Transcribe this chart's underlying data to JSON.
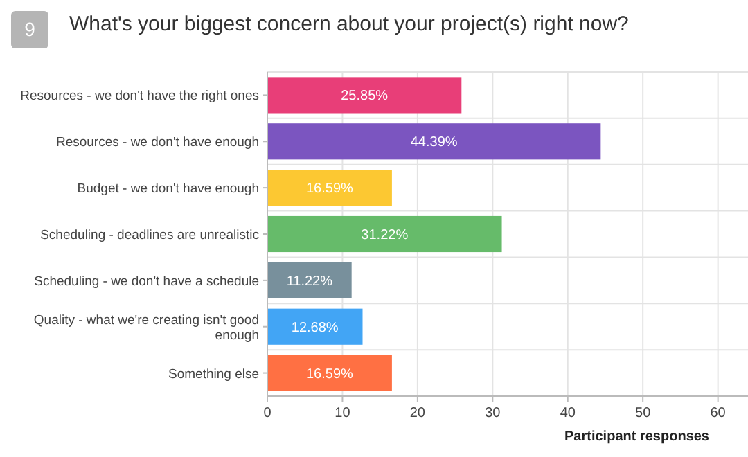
{
  "chart_data": {
    "type": "bar",
    "orientation": "horizontal",
    "title": "What's your biggest concern about your project(s) right now?",
    "annotations": [
      "9"
    ],
    "xlabel": "Participant responses",
    "categories": [
      "Resources - we don't have the right ones",
      "Resources - we don't have enough",
      "Budget - we don't have enough",
      "Scheduling - deadlines are unrealistic",
      "Scheduling - we don't have a schedule",
      "Quality - what we're creating isn't good enough",
      "Something else"
    ],
    "values": [
      25.85,
      44.39,
      16.59,
      31.22,
      11.22,
      12.68,
      16.59
    ],
    "colors": [
      "#e83e78",
      "#7b55c0",
      "#fcc832",
      "#66bb6a",
      "#78909c",
      "#42a5f5",
      "#ff7043"
    ],
    "value_labels": [
      "25.85%",
      "44.39%",
      "16.59%",
      "31.22%",
      "11.22%",
      "12.68%",
      "16.59%"
    ],
    "xlim": [
      0,
      64
    ],
    "xticks": [
      0,
      10,
      20,
      30,
      40,
      50,
      60
    ],
    "grid": true
  }
}
